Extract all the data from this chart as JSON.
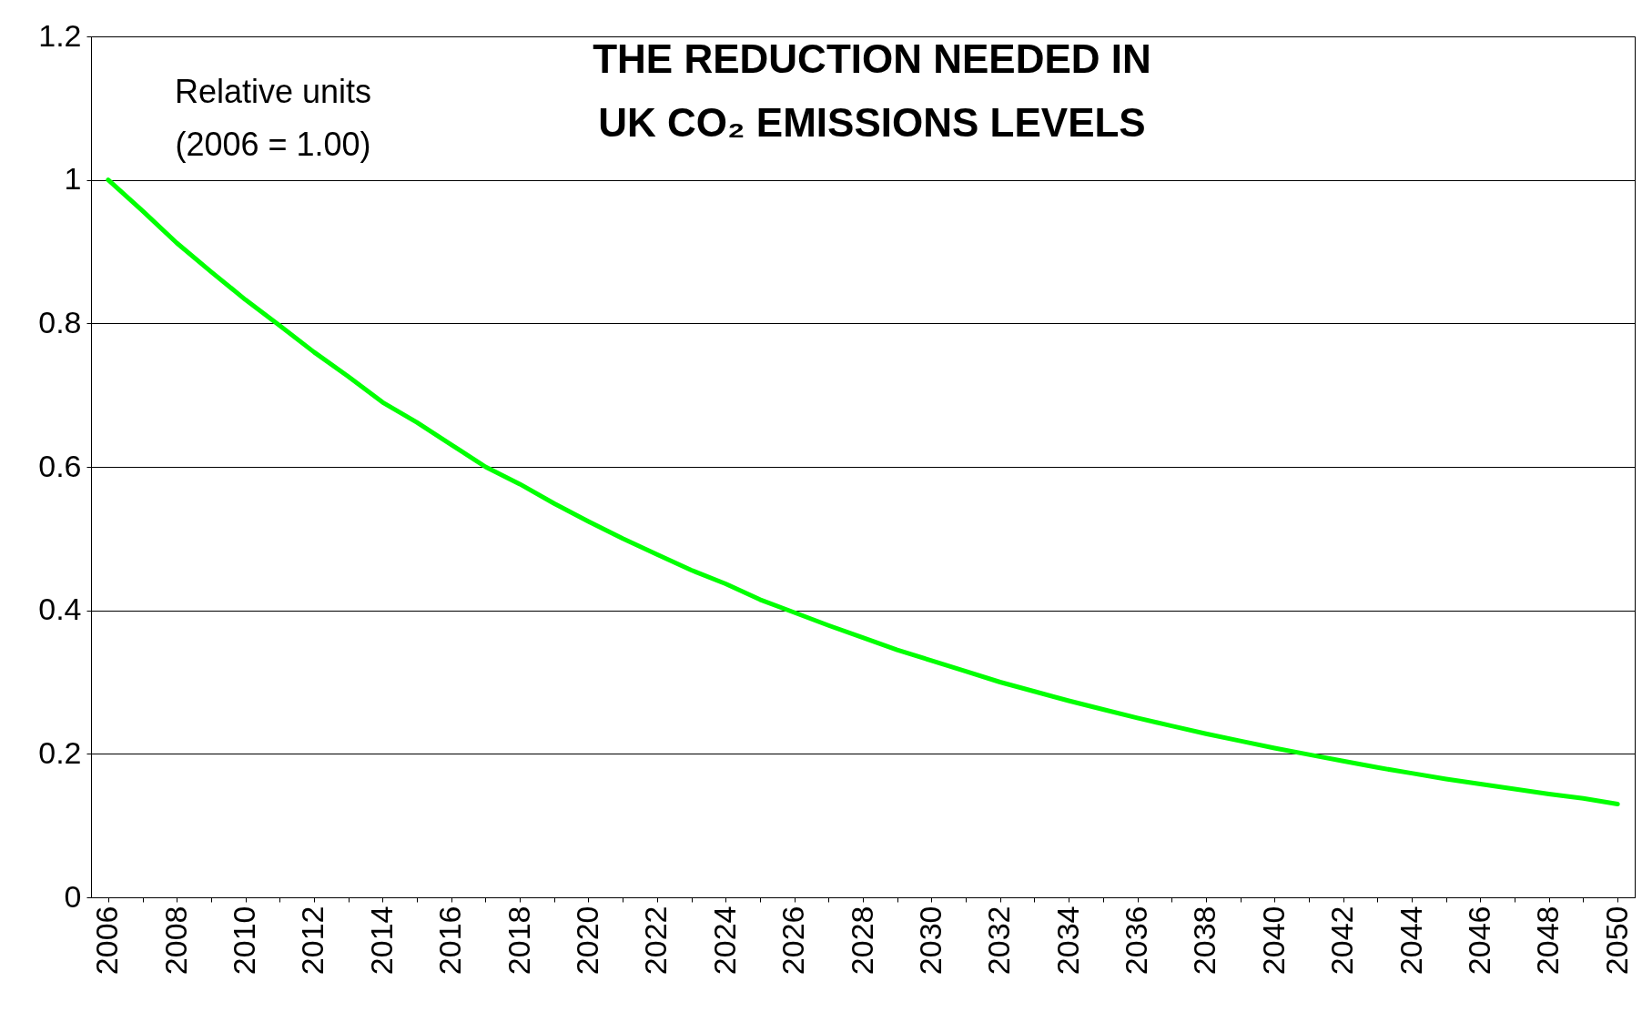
{
  "chart_data": {
    "type": "line",
    "title": [
      "THE REDUCTION NEEDED IN",
      "UK CO₂ EMISSIONS LEVELS"
    ],
    "annotations": [
      "Relative units",
      "(2006 = 1.00)"
    ],
    "categories": [
      "2006",
      null,
      "2008",
      null,
      "2010",
      null,
      "2012",
      null,
      "2014",
      null,
      "2016",
      null,
      "2018",
      null,
      "2020",
      null,
      "2022",
      null,
      "2024",
      null,
      "2026",
      null,
      "2028",
      null,
      "2030",
      null,
      "2032",
      null,
      "2034",
      null,
      "2036",
      null,
      "2038",
      null,
      "2040",
      null,
      "2042",
      null,
      "2044",
      null,
      "2046",
      null,
      "2048",
      null,
      "2050"
    ],
    "series": [
      {
        "color": "#00ff00",
        "values": [
          1.0,
          0.957,
          0.912,
          0.872,
          0.833,
          0.797,
          0.76,
          0.726,
          0.69,
          0.662,
          0.631,
          0.6,
          0.576,
          0.549,
          0.524,
          0.5,
          0.478,
          0.456,
          0.437,
          0.415,
          0.397,
          0.379,
          0.362,
          0.345,
          0.33,
          0.315,
          0.3,
          0.287,
          0.274,
          0.262,
          0.25,
          0.239,
          0.228,
          0.218,
          0.208,
          0.199,
          0.19,
          0.181,
          0.173,
          0.165,
          0.158,
          0.151,
          0.144,
          0.138,
          0.13
        ]
      }
    ],
    "ylim": [
      0,
      1.2
    ],
    "yticks": [
      0,
      0.2,
      0.4,
      0.6,
      0.8,
      1,
      1.2
    ],
    "grid": "y"
  }
}
